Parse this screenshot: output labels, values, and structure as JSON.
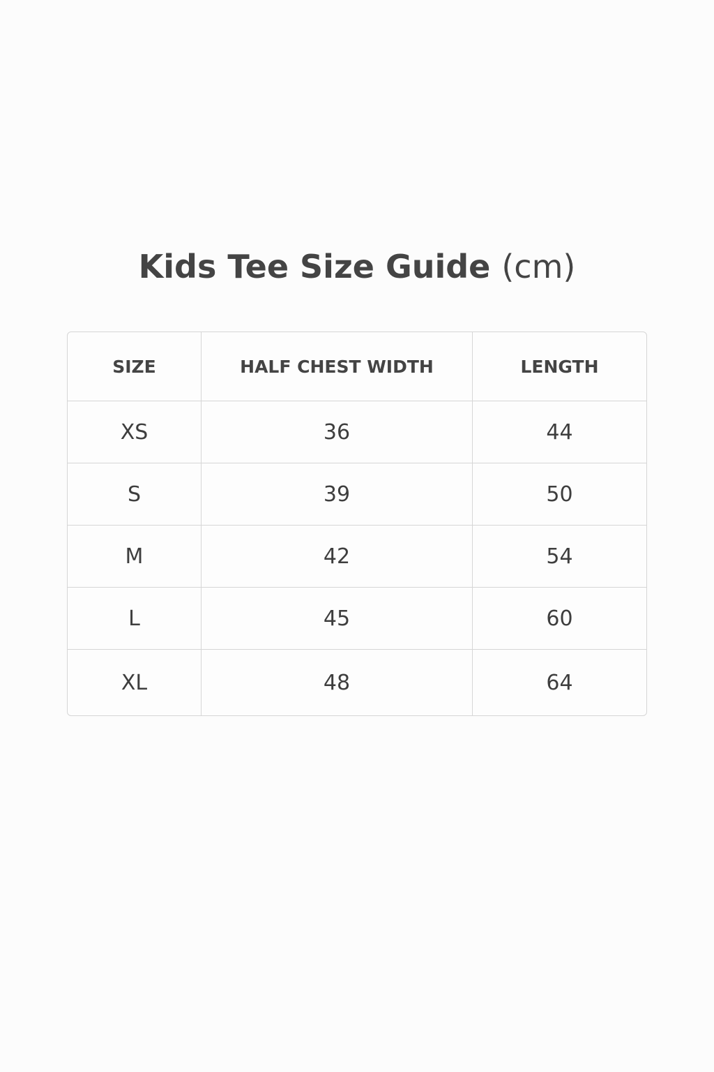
{
  "title": {
    "main": "Kids Tee Size Guide",
    "unit": "(cm)"
  },
  "table": {
    "headers": [
      "SIZE",
      "HALF CHEST WIDTH",
      "LENGTH"
    ],
    "rows": [
      [
        "XS",
        "36",
        "44"
      ],
      [
        "S",
        "39",
        "50"
      ],
      [
        "M",
        "42",
        "54"
      ],
      [
        "L",
        "45",
        "60"
      ],
      [
        "XL",
        "48",
        "64"
      ]
    ]
  }
}
